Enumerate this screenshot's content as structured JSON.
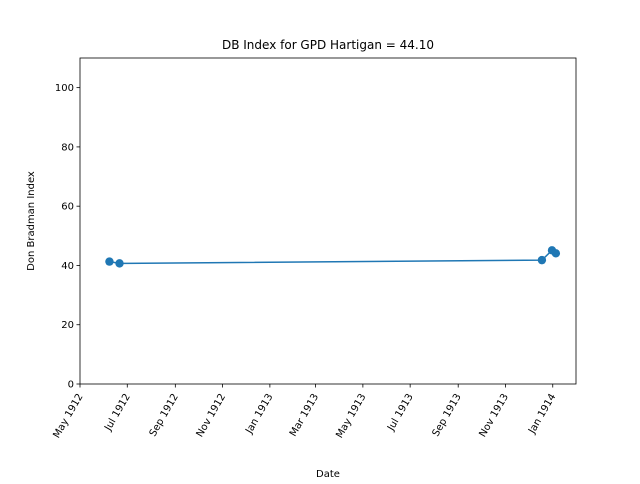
{
  "chart_data": {
    "type": "line",
    "title": "DB Index for GPD Hartigan = 44.10",
    "xlabel": "Date",
    "ylabel": "Don Bradman Index",
    "xlim": [
      "1912-05-01",
      "1914-01-31"
    ],
    "ylim": [
      0,
      110
    ],
    "x_ticks": [
      {
        "date": "1912-05-01",
        "label": "May 1912"
      },
      {
        "date": "1912-07-01",
        "label": "Jul 1912"
      },
      {
        "date": "1912-09-01",
        "label": "Sep 1912"
      },
      {
        "date": "1912-11-01",
        "label": "Nov 1912"
      },
      {
        "date": "1913-01-01",
        "label": "Jan 1913"
      },
      {
        "date": "1913-03-01",
        "label": "Mar 1913"
      },
      {
        "date": "1913-05-01",
        "label": "May 1913"
      },
      {
        "date": "1913-07-01",
        "label": "Jul 1913"
      },
      {
        "date": "1913-09-01",
        "label": "Sep 1913"
      },
      {
        "date": "1913-11-01",
        "label": "Nov 1913"
      },
      {
        "date": "1914-01-01",
        "label": "Jan 1914"
      }
    ],
    "y_ticks": [
      0,
      20,
      40,
      60,
      80,
      100
    ],
    "grid": false,
    "series": [
      {
        "color": "#1f77b4",
        "points": [
          {
            "x": "1912-06-08",
            "y": 41.3
          },
          {
            "x": "1912-06-21",
            "y": 40.7
          },
          {
            "x": "1913-12-18",
            "y": 41.8
          },
          {
            "x": "1913-12-31",
            "y": 45.1
          },
          {
            "x": "1914-01-05",
            "y": 44.1
          }
        ]
      }
    ]
  }
}
